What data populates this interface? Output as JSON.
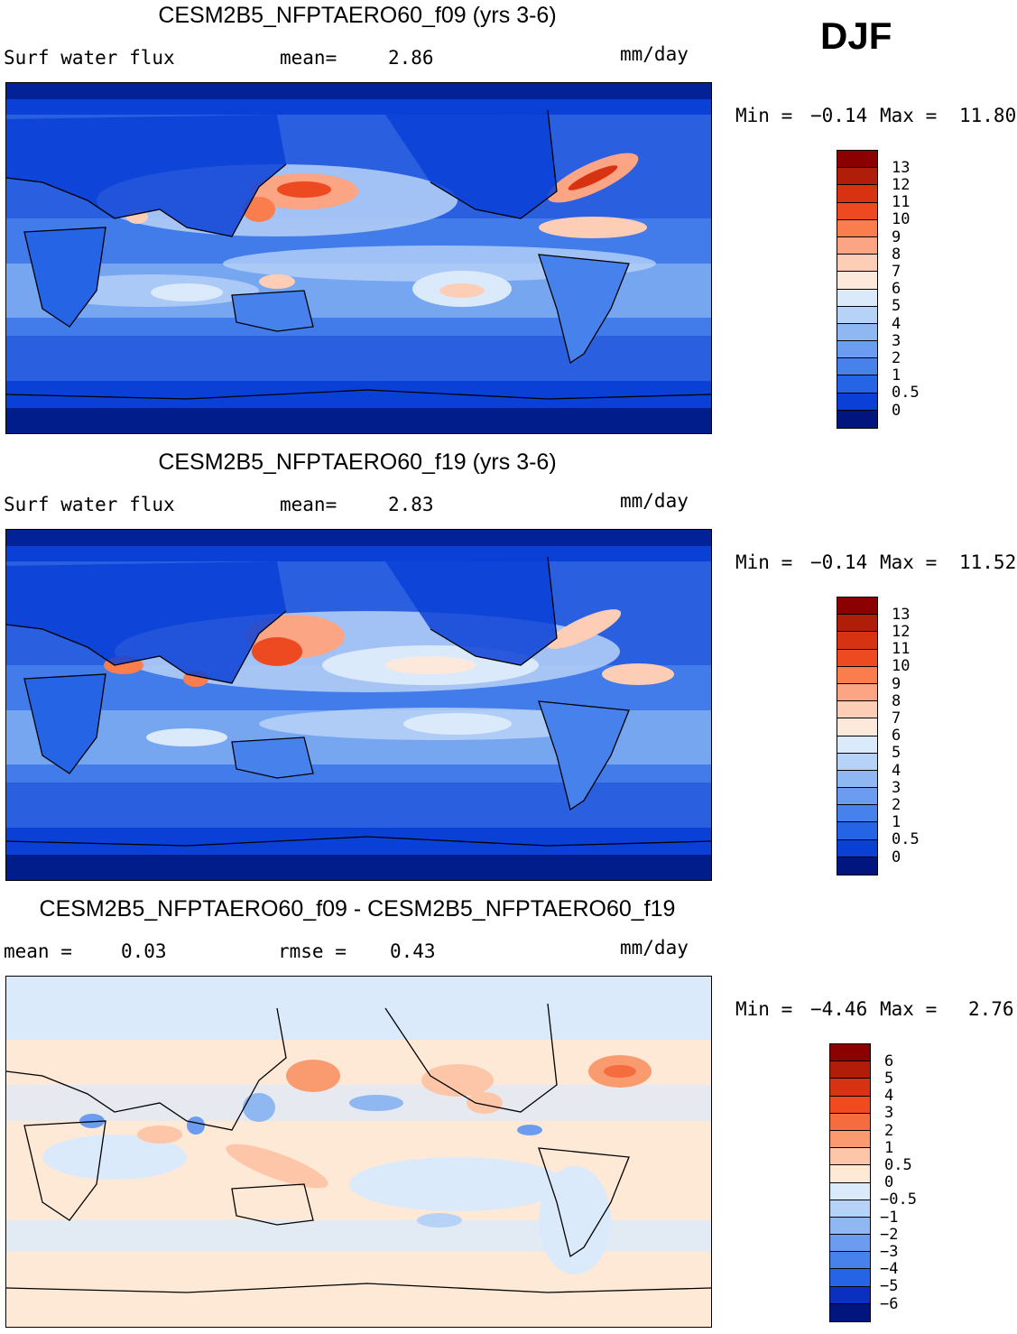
{
  "season": "DJF",
  "units": "mm/day",
  "panels": [
    {
      "title": "CESM2B5_NFPTAERO60_f09 (yrs 3-6)",
      "left_label": "Surf  water  flux",
      "stat_label": "mean=",
      "stat_value": "2.86",
      "units": "mm/day",
      "min_label": "Min  =",
      "min_value": "−0.14",
      "max_label": "Max  =",
      "max_value": "11.80"
    },
    {
      "title": "CESM2B5_NFPTAERO60_f19 (yrs 3-6)",
      "left_label": "Surf  water  flux",
      "stat_label": "mean=",
      "stat_value": "2.83",
      "units": "mm/day",
      "min_label": "Min  =",
      "min_value": "−0.14",
      "max_label": "Max  =",
      "max_value": "11.52"
    },
    {
      "title": "CESM2B5_NFPTAERO60_f09 - CESM2B5_NFPTAERO60_f19",
      "left_label": "mean  =",
      "left_value": "0.03",
      "stat_label": "rmse  =",
      "stat_value": "0.43",
      "units": "mm/day",
      "min_label": "Min  =",
      "min_value": "−4.46",
      "max_label": "Max  =",
      "max_value": "2.76"
    }
  ],
  "chart_data": [
    {
      "type": "heatmap",
      "title": "CESM2B5_NFPTAERO60_f09 (yrs 3-6)",
      "variable": "Surf water flux",
      "units": "mm/day",
      "mean": 2.86,
      "min": -0.14,
      "max": 11.8,
      "levels": [
        "13",
        "12",
        "11",
        "10",
        "9",
        "8",
        "7",
        "6",
        "5",
        "4",
        "3",
        "2",
        "1",
        "0.5",
        "0"
      ],
      "colors": [
        "#8b0000",
        "#b01e0a",
        "#d73312",
        "#ee4a22",
        "#fa7d4d",
        "#fca585",
        "#fdcdb5",
        "#fde9dc",
        "#dbeafb",
        "#b7d2f7",
        "#8fb8f2",
        "#6b9cef",
        "#4781ec",
        "#2664e6",
        "#0a40d6",
        "#00167e"
      ]
    },
    {
      "type": "heatmap",
      "title": "CESM2B5_NFPTAERO60_f19 (yrs 3-6)",
      "variable": "Surf water flux",
      "units": "mm/day",
      "mean": 2.83,
      "min": -0.14,
      "max": 11.52,
      "levels": [
        "13",
        "12",
        "11",
        "10",
        "9",
        "8",
        "7",
        "6",
        "5",
        "4",
        "3",
        "2",
        "1",
        "0.5",
        "0"
      ],
      "colors": [
        "#8b0000",
        "#b01e0a",
        "#d73312",
        "#ee4a22",
        "#fa7d4d",
        "#fca585",
        "#fdcdb5",
        "#fde9dc",
        "#dbeafb",
        "#b7d2f7",
        "#8fb8f2",
        "#6b9cef",
        "#4781ec",
        "#2664e6",
        "#0a40d6",
        "#00167e"
      ]
    },
    {
      "type": "heatmap",
      "title": "CESM2B5_NFPTAERO60_f09 - CESM2B5_NFPTAERO60_f19",
      "units": "mm/day",
      "mean": 0.03,
      "rmse": 0.43,
      "min": -4.46,
      "max": 2.76,
      "levels": [
        "6",
        "5",
        "4",
        "3",
        "2",
        "1",
        "0.5",
        "0",
        "−0.5",
        "−1",
        "−2",
        "−3",
        "−4",
        "−5",
        "−6"
      ],
      "colors": [
        "#8b0000",
        "#b01e0a",
        "#d73312",
        "#f04a1e",
        "#f56c3e",
        "#fa9a6f",
        "#fdc6a8",
        "#fde9d6",
        "#dbeafb",
        "#b7d2f7",
        "#8fb8f2",
        "#6b9cef",
        "#4781ec",
        "#2664e6",
        "#0a30c0",
        "#00167e"
      ]
    }
  ]
}
